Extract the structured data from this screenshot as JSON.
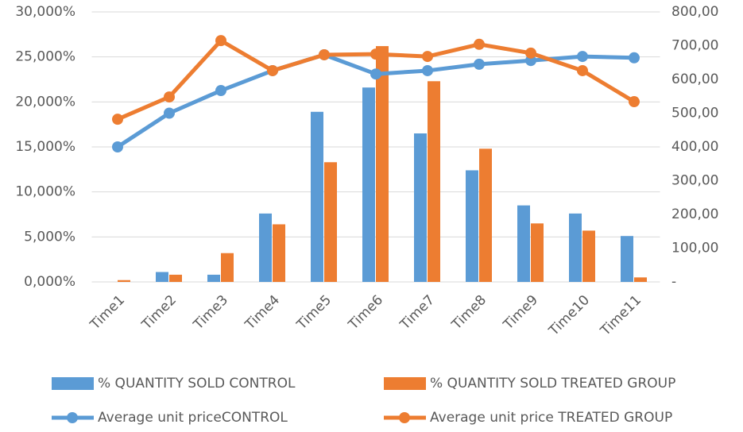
{
  "chart_data": {
    "type": "bar-line",
    "categories": [
      "Time1",
      "Time2",
      "Time3",
      "Time4",
      "Time5",
      "Time6",
      "Time7",
      "Time8",
      "Time9",
      "Time10",
      "Time11"
    ],
    "series": [
      {
        "name": "% QUANTITY SOLD  CONTROL",
        "type": "bar",
        "color": "#5b9bd5",
        "values": [
          0,
          1.1,
          0.8,
          7.6,
          18.9,
          21.6,
          16.5,
          12.4,
          8.5,
          7.6,
          5.1
        ]
      },
      {
        "name": "% QUANTITY SOLD TREATED GROUP",
        "type": "bar",
        "color": "#ed7d31",
        "values": [
          0.2,
          0.8,
          3.2,
          6.4,
          13.3,
          26.2,
          22.3,
          14.8,
          6.5,
          5.7,
          0.5
        ]
      },
      {
        "name": "Average unit priceCONTROL",
        "type": "line",
        "axis": "y2",
        "color": "#5b9bd5",
        "values": [
          400,
          500,
          567,
          626,
          673,
          616,
          626,
          645,
          656,
          668,
          664
        ]
      },
      {
        "name": "Average unit price TREATED GROUP",
        "type": "line",
        "axis": "y2",
        "color": "#ed7d31",
        "values": [
          482,
          548,
          715,
          626,
          673,
          675,
          668,
          704,
          678,
          626,
          534
        ]
      }
    ],
    "ylim": [
      0,
      30
    ],
    "yticks": [
      {
        "value": 0,
        "label": "0,000%"
      },
      {
        "value": 5,
        "label": "5,000%"
      },
      {
        "value": 10,
        "label": "10,000%"
      },
      {
        "value": 15,
        "label": "15,000%"
      },
      {
        "value": 20,
        "label": "20,000%"
      },
      {
        "value": 25,
        "label": "25,000%"
      },
      {
        "value": 30,
        "label": "30,000%"
      }
    ],
    "y2lim": [
      0,
      800
    ],
    "y2ticks": [
      {
        "value": 0,
        "label": "-"
      },
      {
        "value": 100,
        "label": "100,00"
      },
      {
        "value": 200,
        "label": "200,00"
      },
      {
        "value": 300,
        "label": "300,00"
      },
      {
        "value": 400,
        "label": "400,00"
      },
      {
        "value": 500,
        "label": "500,00"
      },
      {
        "value": 600,
        "label": "600,00"
      },
      {
        "value": 700,
        "label": "700,00"
      },
      {
        "value": 800,
        "label": "800,00"
      }
    ],
    "grid": true
  }
}
